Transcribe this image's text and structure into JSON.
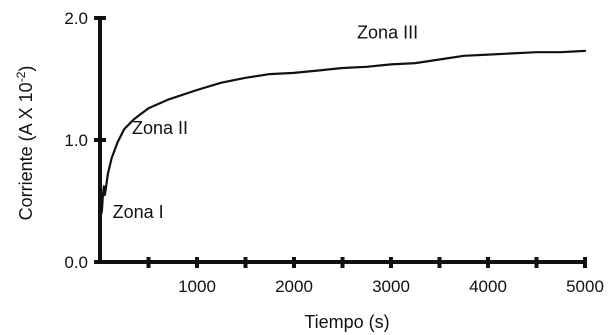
{
  "chart_data": {
    "type": "line",
    "title": "",
    "xlabel": "Tiempo (s)",
    "ylabel_main": "Corriente (A X 10",
    "ylabel_exp": "-2",
    "ylabel_close": ")",
    "xlim": [
      0,
      5000
    ],
    "ylim": [
      0,
      2.0
    ],
    "x_ticks": [
      500,
      1000,
      1500,
      2000,
      2500,
      3000,
      3500,
      4000,
      4500,
      5000
    ],
    "x_tick_labels": [
      {
        "value": 1000,
        "label": "1000"
      },
      {
        "value": 2000,
        "label": "2000"
      },
      {
        "value": 3000,
        "label": "3000"
      },
      {
        "value": 4000,
        "label": "4000"
      },
      {
        "value": 5000,
        "label": "5000"
      }
    ],
    "y_tick_labels": [
      {
        "value": 0.0,
        "label": "0.0"
      },
      {
        "value": 1.0,
        "label": "1.0"
      },
      {
        "value": 2.0,
        "label": "2.0"
      }
    ],
    "grid": false,
    "series": [
      {
        "color": "#111111",
        "points": [
          [
            0,
            0.35
          ],
          [
            20,
            0.42
          ],
          [
            30,
            0.55
          ],
          [
            40,
            0.62
          ],
          [
            50,
            0.55
          ],
          [
            60,
            0.6
          ],
          [
            80,
            0.72
          ],
          [
            120,
            0.85
          ],
          [
            180,
            0.98
          ],
          [
            250,
            1.09
          ],
          [
            350,
            1.17
          ],
          [
            500,
            1.26
          ],
          [
            700,
            1.33
          ],
          [
            1000,
            1.41
          ],
          [
            1250,
            1.47
          ],
          [
            1500,
            1.51
          ],
          [
            1750,
            1.54
          ],
          [
            2000,
            1.55
          ],
          [
            2250,
            1.57
          ],
          [
            2500,
            1.59
          ],
          [
            2750,
            1.6
          ],
          [
            3000,
            1.62
          ],
          [
            3250,
            1.63
          ],
          [
            3500,
            1.66
          ],
          [
            3750,
            1.69
          ],
          [
            4000,
            1.7
          ],
          [
            4250,
            1.71
          ],
          [
            4500,
            1.72
          ],
          [
            4750,
            1.72
          ],
          [
            5000,
            1.73
          ]
        ]
      }
    ],
    "annotations": [
      {
        "text": "Zona I",
        "x": 130,
        "y": 0.36
      },
      {
        "text": "Zona II",
        "x": 330,
        "y": 1.05
      },
      {
        "text": "Zona III",
        "x": 2650,
        "y": 1.83
      }
    ]
  }
}
